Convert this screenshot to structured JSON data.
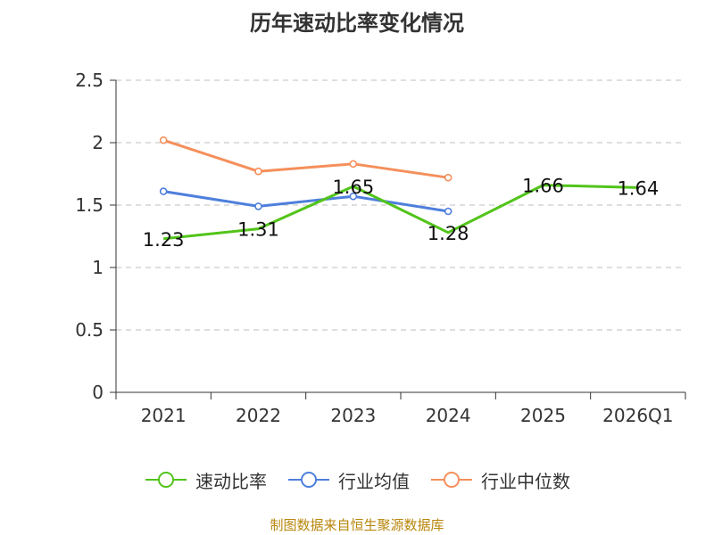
{
  "chart_data": {
    "type": "line",
    "title": "历年速动比率变化情况",
    "categories": [
      "2021",
      "2022",
      "2023",
      "2024",
      "2025",
      "2026Q1"
    ],
    "ylim": [
      0,
      2.5
    ],
    "yticks": [
      "0",
      "0.5",
      "1",
      "1.5",
      "2",
      "2.5"
    ],
    "grid": true,
    "legend_position": "bottom",
    "series": [
      {
        "name": "速动比率",
        "color": "#52c41a",
        "values": [
          1.23,
          1.31,
          1.65,
          1.28,
          1.66,
          1.64
        ],
        "labels": [
          "1.23",
          "1.31",
          "1.65",
          "1.28",
          "1.66",
          "1.64"
        ],
        "markers": false
      },
      {
        "name": "行业均值",
        "color": "#4e7fdc",
        "values": [
          1.61,
          1.49,
          1.57,
          1.45,
          null,
          null
        ],
        "markers": true
      },
      {
        "name": "行业中位数",
        "color": "#f58f5b",
        "values": [
          2.02,
          1.77,
          1.83,
          1.72,
          null,
          null
        ],
        "markers": true
      }
    ]
  },
  "source_note": "制图数据来自恒生聚源数据库"
}
